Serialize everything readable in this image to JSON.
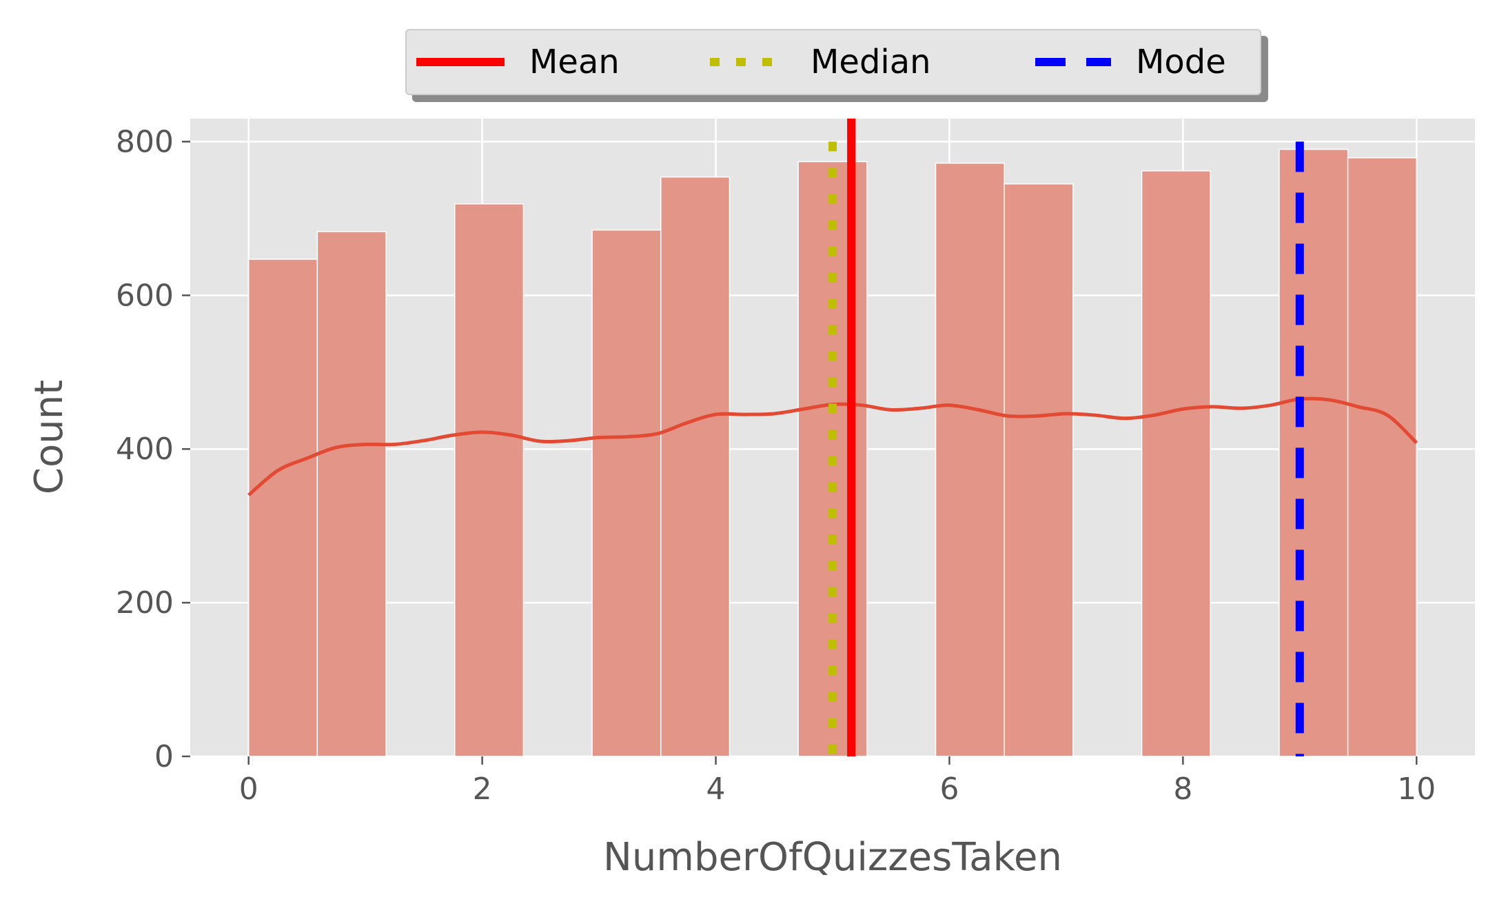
{
  "chart_data": {
    "type": "bar",
    "xlabel": "NumberOfQuizzesTaken",
    "ylabel": "Count",
    "xlim": [
      -0.5,
      10.5
    ],
    "ylim": [
      0,
      830
    ],
    "x_ticks": [
      0,
      2,
      4,
      6,
      8,
      10
    ],
    "y_ticks": [
      0,
      200,
      400,
      600,
      800
    ],
    "grid": true,
    "bins": {
      "edges": [
        0.0,
        0.5882,
        1.1765,
        1.7647,
        2.3529,
        2.9412,
        3.5294,
        4.1176,
        4.7059,
        5.2941,
        5.8824,
        6.4706,
        7.0588,
        7.6471,
        8.2353,
        8.8235,
        9.4118,
        10.0
      ],
      "counts": [
        647,
        683,
        0,
        719,
        0,
        685,
        754,
        0,
        774,
        0,
        772,
        745,
        0,
        762,
        0,
        790,
        779
      ]
    },
    "kde": {
      "x": [
        0.0,
        0.25,
        0.5,
        0.75,
        1.0,
        1.25,
        1.5,
        1.75,
        2.0,
        2.25,
        2.5,
        2.75,
        3.0,
        3.25,
        3.5,
        3.75,
        4.0,
        4.25,
        4.5,
        4.75,
        5.0,
        5.25,
        5.5,
        5.75,
        6.0,
        6.25,
        6.5,
        6.75,
        7.0,
        7.25,
        7.5,
        7.75,
        8.0,
        8.25,
        8.5,
        8.75,
        9.0,
        9.25,
        9.5,
        9.75,
        10.0
      ],
      "y": [
        340,
        372,
        388,
        402,
        406,
        406,
        411,
        418,
        422,
        418,
        410,
        411,
        415,
        416,
        420,
        434,
        445,
        445,
        446,
        452,
        458,
        457,
        451,
        453,
        457,
        451,
        443,
        443,
        446,
        444,
        440,
        444,
        452,
        455,
        453,
        457,
        465,
        464,
        455,
        444,
        408
      ]
    },
    "lines": [
      {
        "name": "Mean",
        "x": 5.16,
        "color": "#ff0000",
        "style": "solid"
      },
      {
        "name": "Median",
        "x": 5.0,
        "color": "#bfbf00",
        "style": "dotted"
      },
      {
        "name": "Mode",
        "x": 9.0,
        "color": "#0000ff",
        "style": "dashed"
      }
    ],
    "legend_position": "top-center",
    "colors": {
      "bar_fill": "#e39587",
      "kde_line": "#e24a33",
      "plot_background": "#e5e5e5",
      "grid": "#ffffff"
    }
  }
}
